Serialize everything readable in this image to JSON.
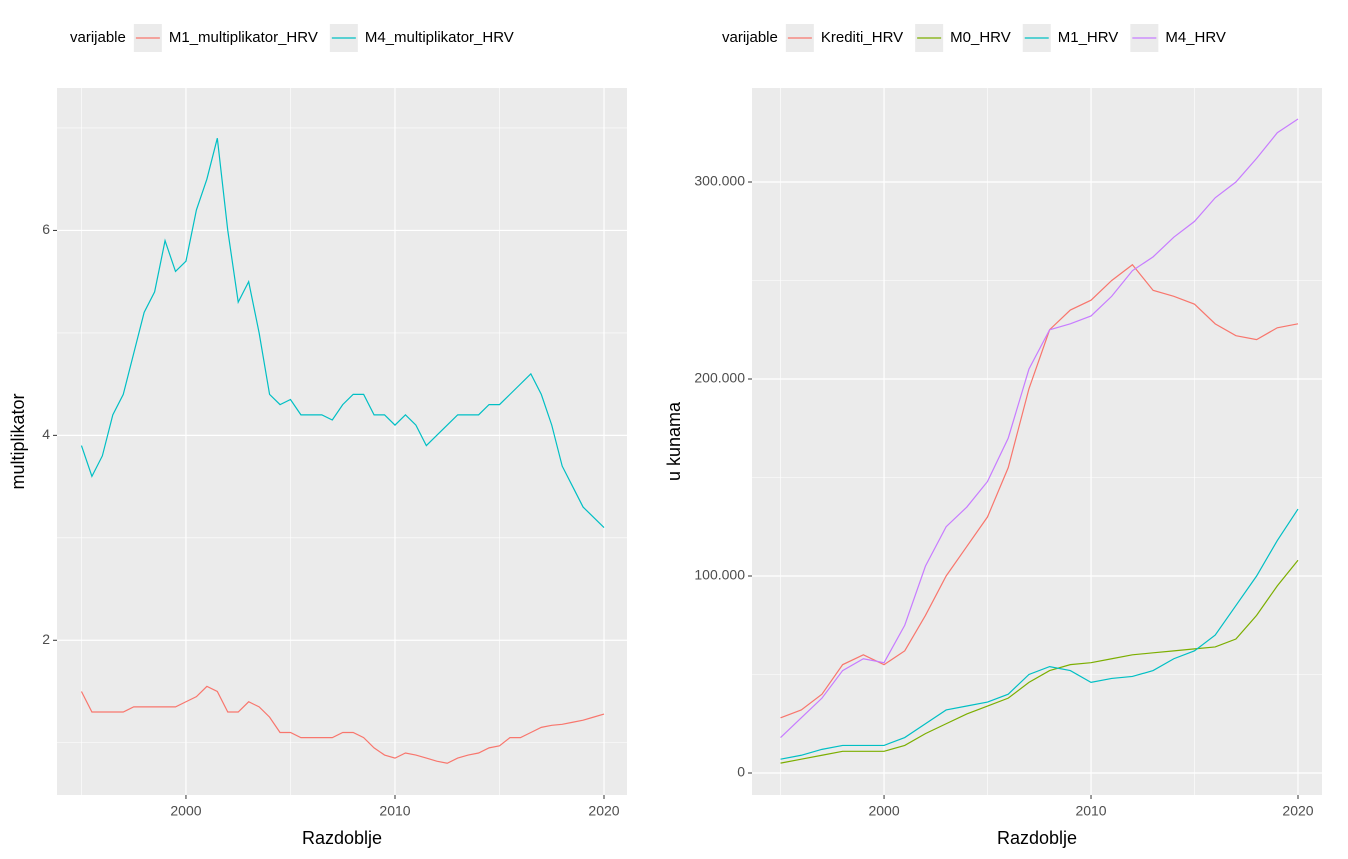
{
  "chart_data": [
    {
      "type": "line",
      "legend_title": "varijable",
      "legend": "top",
      "x_label": "Razdoblje",
      "y_label": "multiplikator",
      "xlim": [
        1993.83,
        2021.1
      ],
      "xticks": [
        2000,
        2010,
        2020
      ],
      "ylim": [
        0.49,
        7.39
      ],
      "yticks": [
        2,
        4,
        6
      ],
      "grid": true,
      "x": [
        1995,
        1995.5,
        1996,
        1996.5,
        1997,
        1997.5,
        1998,
        1998.5,
        1999,
        1999.5,
        2000,
        2000.5,
        2001,
        2001.5,
        2002,
        2002.5,
        2003,
        2003.5,
        2004,
        2004.5,
        2005,
        2005.5,
        2006,
        2006.5,
        2007,
        2007.5,
        2008,
        2008.5,
        2009,
        2009.5,
        2010,
        2010.5,
        2011,
        2011.5,
        2012,
        2012.5,
        2013,
        2013.5,
        2014,
        2014.5,
        2015,
        2015.5,
        2016,
        2016.5,
        2017,
        2017.5,
        2018,
        2018.5,
        2019,
        2019.5,
        2020
      ],
      "series": [
        {
          "name": "M1_multiplikator_HRV",
          "color": "#F8766D",
          "values": [
            1.5,
            1.3,
            1.3,
            1.3,
            1.3,
            1.35,
            1.35,
            1.35,
            1.35,
            1.35,
            1.4,
            1.45,
            1.55,
            1.5,
            1.3,
            1.3,
            1.4,
            1.35,
            1.25,
            1.1,
            1.1,
            1.05,
            1.05,
            1.05,
            1.05,
            1.1,
            1.1,
            1.05,
            0.95,
            0.88,
            0.85,
            0.9,
            0.88,
            0.85,
            0.82,
            0.8,
            0.85,
            0.88,
            0.9,
            0.95,
            0.97,
            1.05,
            1.05,
            1.1,
            1.15,
            1.17,
            1.18,
            1.2,
            1.22,
            1.25,
            1.28
          ]
        },
        {
          "name": "M4_multiplikator_HRV",
          "color": "#00BFC4",
          "values": [
            3.9,
            3.6,
            3.8,
            4.2,
            4.4,
            4.8,
            5.2,
            5.4,
            5.9,
            5.6,
            5.7,
            6.2,
            6.5,
            6.9,
            6.0,
            5.3,
            5.5,
            5.0,
            4.4,
            4.3,
            4.35,
            4.2,
            4.2,
            4.2,
            4.15,
            4.3,
            4.4,
            4.4,
            4.2,
            4.2,
            4.1,
            4.2,
            4.1,
            3.9,
            4.0,
            4.1,
            4.2,
            4.2,
            4.2,
            4.3,
            4.3,
            4.4,
            4.5,
            4.6,
            4.4,
            4.1,
            3.7,
            3.5,
            3.3,
            3.2,
            3.1
          ]
        }
      ]
    },
    {
      "type": "line",
      "legend_title": "varijable",
      "legend": "top",
      "x_label": "Razdoblje",
      "y_label": "u kunama",
      "xlim": [
        1993.62,
        2021.16
      ],
      "xticks": [
        2000,
        2010,
        2020
      ],
      "ylim": [
        -11168,
        347716
      ],
      "yticks": [
        0,
        {
          "value": 100000,
          "label": "100.000"
        },
        {
          "value": 200000,
          "label": "200.000"
        },
        {
          "value": 300000,
          "label": "300.000"
        }
      ],
      "grid": true,
      "x": [
        1995,
        1996,
        1997,
        1998,
        1999,
        2000,
        2001,
        2002,
        2003,
        2004,
        2005,
        2006,
        2007,
        2008,
        2009,
        2010,
        2011,
        2012,
        2013,
        2014,
        2015,
        2016,
        2017,
        2018,
        2019,
        2020
      ],
      "series": [
        {
          "name": "Krediti_HRV",
          "color": "#F8766D",
          "values": [
            28000,
            32000,
            40000,
            55000,
            60000,
            55000,
            62000,
            80000,
            100000,
            115000,
            130000,
            155000,
            195000,
            225000,
            235000,
            240000,
            250000,
            258000,
            245000,
            242000,
            238000,
            228000,
            222000,
            220000,
            226000,
            228000
          ]
        },
        {
          "name": "M0_HRV",
          "color": "#7CAE00",
          "values": [
            5000,
            7000,
            9000,
            11000,
            11000,
            11000,
            14000,
            20000,
            25000,
            30000,
            34000,
            38000,
            46000,
            52000,
            55000,
            56000,
            58000,
            60000,
            61000,
            62000,
            63000,
            64000,
            68000,
            80000,
            95000,
            108000
          ]
        },
        {
          "name": "M1_HRV",
          "color": "#00BFC4",
          "values": [
            7000,
            9000,
            12000,
            14000,
            14000,
            14000,
            18000,
            25000,
            32000,
            34000,
            36000,
            40000,
            50000,
            54000,
            52000,
            46000,
            48000,
            49000,
            52000,
            58000,
            62000,
            70000,
            85000,
            100000,
            118000,
            134000
          ]
        },
        {
          "name": "M4_HRV",
          "color": "#C77CFF",
          "values": [
            18000,
            28000,
            38000,
            52000,
            58000,
            56000,
            75000,
            105000,
            125000,
            135000,
            148000,
            170000,
            205000,
            225000,
            228000,
            232000,
            242000,
            255000,
            262000,
            272000,
            280000,
            292000,
            300000,
            312000,
            325000,
            332000
          ]
        }
      ]
    }
  ]
}
